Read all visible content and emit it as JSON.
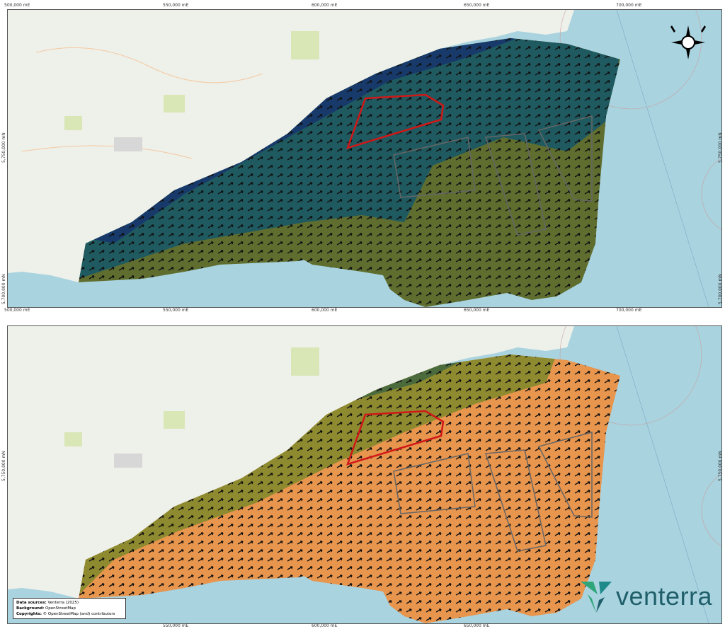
{
  "axes": {
    "x_top": [
      "500,000 mE",
      "550,000 mE",
      "600,000 mE",
      "650,000 mE",
      "700,000 mE"
    ],
    "x_bottom": [
      "500,000 mE",
      "550,000 mE",
      "600,000 mE",
      "650,000 mE",
      "700,000 mE"
    ],
    "y_left": [
      "5,750,000 mN",
      "5,700,000 mN"
    ],
    "y_right": [
      "5,750,000 mN",
      "5,700,000 mN"
    ]
  },
  "legend": {
    "data_sources_label": "Data sources:",
    "data_sources_value": "Venterra (2025)",
    "background_label": "Background:",
    "background_value": "OpenStreetMap",
    "copyrights_label": "Copyrights:",
    "copyrights_value": "© OpenStreetMap (and) contributors"
  },
  "logo": {
    "text": "venterra"
  },
  "colors": {
    "sea": "#a9d3df",
    "land": "#eef0ea",
    "top_dark": "#173a6b",
    "top_mid": "#1f5a60",
    "top_olive": "#5f6e2f",
    "bottom_green": "#4c6b3c",
    "bottom_olive": "#8e8a2f",
    "bottom_orange": "#e8954e",
    "site_outline": "#d01818",
    "block_outline": "#666666",
    "logo_green": "#2fa67a"
  },
  "icons": {
    "compass": "compass-rose-icon",
    "logo_mark": "venterra-logo-icon"
  }
}
